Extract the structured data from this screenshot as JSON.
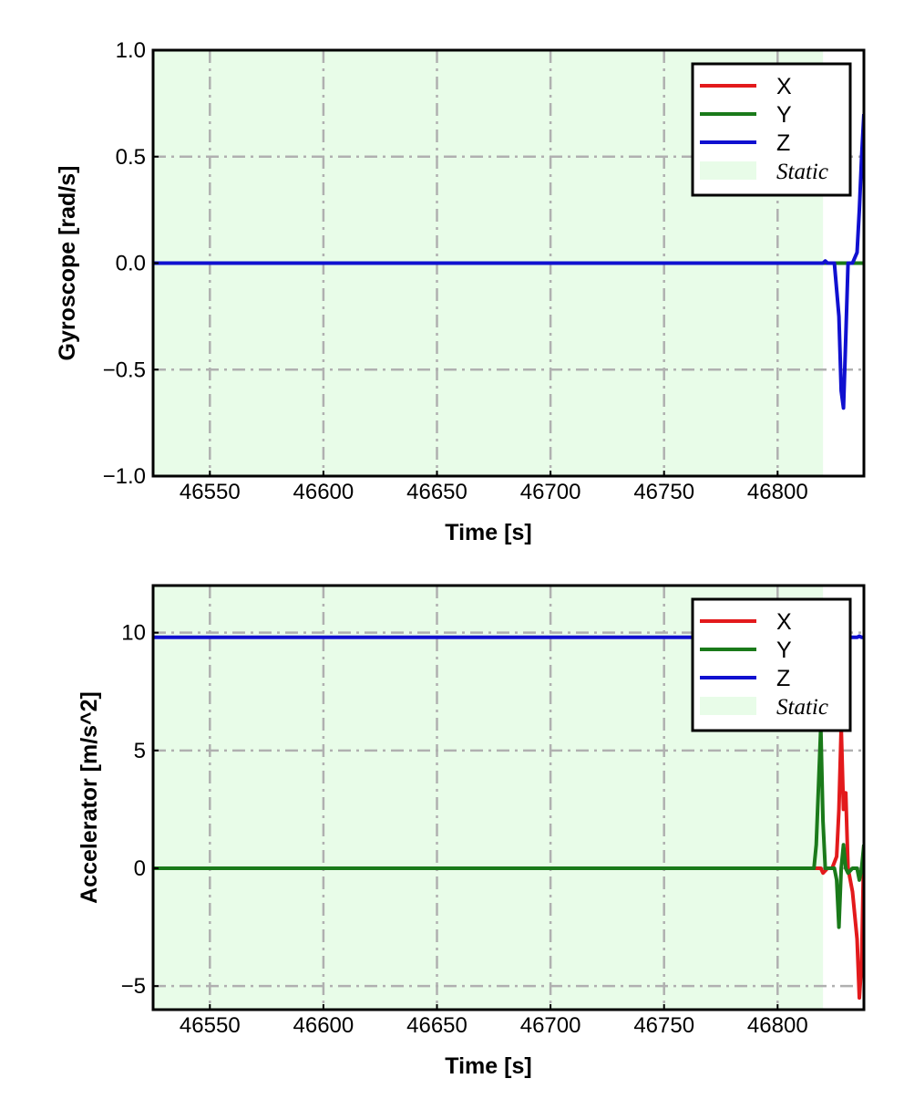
{
  "chart_data": [
    {
      "type": "line",
      "xlabel": "Time [s]",
      "ylabel": "Gyroscope [rad/s]",
      "xlim": [
        46525,
        46838
      ],
      "ylim": [
        -1.0,
        1.0
      ],
      "xticks": [
        46550,
        46600,
        46650,
        46700,
        46750,
        46800
      ],
      "xtick_labels": [
        "46550",
        "46600",
        "46650",
        "46700",
        "46750",
        "46800"
      ],
      "yticks": [
        1.0,
        0.5,
        0.0,
        -0.5,
        -1.0
      ],
      "ytick_labels": [
        "1.0",
        "0.5",
        "0.0",
        "−0.5",
        "−1.0"
      ],
      "grid": true,
      "legend_position": "top-right",
      "static_region": {
        "label": "Static",
        "x": [
          46525,
          46820
        ],
        "color": "#e8fce8"
      },
      "series": [
        {
          "name": "X",
          "color": "#e31a1c",
          "x": [
            46525,
            46820,
            46825,
            46830,
            46835,
            46838
          ],
          "y": [
            0.0,
            0.0,
            0.0,
            0.0,
            0.0,
            0.0
          ]
        },
        {
          "name": "Y",
          "color": "#1a7a1a",
          "x": [
            46525,
            46820,
            46825,
            46830,
            46835,
            46838
          ],
          "y": [
            0.0,
            0.0,
            0.0,
            0.0,
            0.0,
            0.0
          ]
        },
        {
          "name": "Z",
          "color": "#1010d0",
          "x": [
            46525,
            46820,
            46821,
            46822,
            46825,
            46827,
            46828,
            46829,
            46830,
            46831,
            46833,
            46835,
            46836,
            46837,
            46838
          ],
          "y": [
            0.0,
            0.0,
            0.01,
            0.0,
            0.0,
            -0.25,
            -0.6,
            -0.68,
            -0.35,
            0.0,
            0.0,
            0.05,
            0.25,
            0.5,
            0.7
          ]
        }
      ]
    },
    {
      "type": "line",
      "xlabel": "Time [s]",
      "ylabel": "Accelerator [m/s^2]",
      "xlim": [
        46525,
        46838
      ],
      "ylim": [
        -6.0,
        12.0
      ],
      "xticks": [
        46550,
        46600,
        46650,
        46700,
        46750,
        46800
      ],
      "xtick_labels": [
        "46550",
        "46600",
        "46650",
        "46700",
        "46750",
        "46800"
      ],
      "yticks": [
        10,
        5,
        0,
        -5
      ],
      "ytick_labels": [
        "10",
        "5",
        "0",
        "−5"
      ],
      "grid": true,
      "legend_position": "top-right",
      "static_region": {
        "label": "Static",
        "x": [
          46525,
          46820
        ],
        "color": "#e8fce8"
      },
      "series": [
        {
          "name": "X",
          "color": "#e31a1c",
          "x": [
            46525,
            46819,
            46820,
            46822,
            46824,
            46826,
            46827,
            46828,
            46829,
            46830,
            46831,
            46833,
            46835,
            46836,
            46837,
            46838
          ],
          "y": [
            0.0,
            0.0,
            -0.2,
            0.0,
            0.0,
            0.5,
            2.5,
            6.0,
            2.5,
            3.2,
            0.0,
            -1.0,
            -3.0,
            -5.5,
            -4.0,
            1.0
          ]
        },
        {
          "name": "Y",
          "color": "#1a7a1a",
          "x": [
            46525,
            46816,
            46817,
            46818,
            46819,
            46820,
            46821,
            46823,
            46825,
            46826,
            46827,
            46828,
            46829,
            46830,
            46831,
            46833,
            46835,
            46836,
            46837,
            46838
          ],
          "y": [
            0.0,
            0.0,
            1.0,
            3.5,
            6.0,
            2.0,
            0.0,
            0.0,
            0.0,
            -0.5,
            -2.5,
            0.0,
            1.0,
            0.0,
            -0.2,
            0.0,
            0.0,
            -0.5,
            0.0,
            1.0
          ]
        },
        {
          "name": "Z",
          "color": "#1010d0",
          "x": [
            46525,
            46835,
            46836,
            46837,
            46838
          ],
          "y": [
            9.8,
            9.8,
            9.85,
            9.8,
            9.8
          ]
        }
      ]
    }
  ]
}
